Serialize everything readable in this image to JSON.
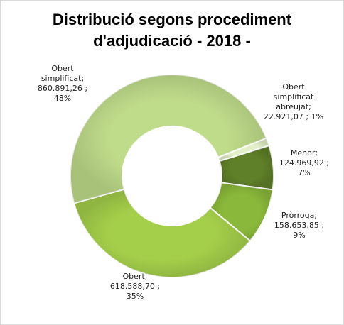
{
  "chart_data": {
    "type": "pie",
    "variant": "doughnut",
    "title_lines": [
      "Distribució segons procediment",
      "d'adjudicació - 2018 -"
    ],
    "slices": [
      {
        "name": "Obert simplificat abreujat",
        "value": "22.921,07",
        "percent": "1%",
        "label_lines": [
          "Obert",
          "simplificat",
          "abreujat;",
          "22.921,07   ; 1%"
        ],
        "color": "#e2efc8"
      },
      {
        "name": "Menor",
        "value": "124.969,92",
        "percent": "7%",
        "label_lines": [
          "Menor;",
          "124.969,92   ;",
          "7%"
        ],
        "color": "#5f7f28"
      },
      {
        "name": "Pròrroga",
        "value": "158.653,85",
        "percent": "9%",
        "label_lines": [
          "Pròrroga;",
          "158.653,85   ;",
          "9%"
        ],
        "color": "#8ab83a"
      },
      {
        "name": "Obert",
        "value": "618.588,70",
        "percent": "35%",
        "label_lines": [
          "Obert;",
          "618.588,70   ;",
          "35%"
        ],
        "color": "#a4cf4a"
      },
      {
        "name": "Obert simplificat",
        "value": "860.891,26",
        "percent": "48%",
        "label_lines": [
          "Obert",
          "simplificat;",
          "860.891,26   ;",
          "48%"
        ],
        "color": "#bfdc8a"
      }
    ],
    "numeric_values": [
      22921.07,
      124969.92,
      158653.85,
      618588.7,
      860891.26
    ],
    "start_angle_deg": 68,
    "direction": "clockwise",
    "legend": "none"
  }
}
